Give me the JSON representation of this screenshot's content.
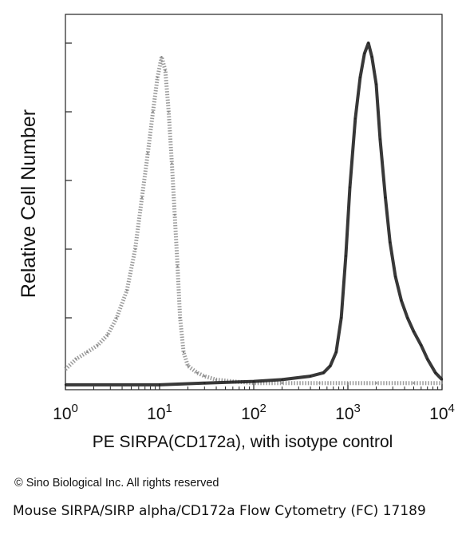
{
  "chart_data": {
    "type": "line",
    "title": "",
    "xlabel": "PE SIRPA(CD172a), with isotype control",
    "ylabel": "Relative Cell Number",
    "x_scale": "log",
    "xlim": [
      1,
      10000
    ],
    "ylim": [
      0,
      100
    ],
    "x_ticks": [
      {
        "value": 1,
        "base": "10",
        "exp": "0"
      },
      {
        "value": 10,
        "base": "10",
        "exp": "1"
      },
      {
        "value": 100,
        "base": "10",
        "exp": "2"
      },
      {
        "value": 1000,
        "base": "10",
        "exp": "3"
      },
      {
        "value": 10000,
        "base": "10",
        "exp": "4"
      }
    ],
    "grid": false,
    "legend": "none",
    "series": [
      {
        "color": "#8a8a8a",
        "style": "dotted",
        "x": [
          1,
          1.3,
          1.7,
          2.2,
          2.8,
          3.5,
          4.5,
          5.5,
          6.5,
          7.5,
          8.5,
          9.5,
          10.5,
          11.5,
          12.5,
          13.5,
          14.5,
          15.5,
          16.5,
          18,
          20,
          25,
          30,
          40,
          60,
          100,
          200,
          500,
          1000,
          2000,
          5000,
          10000
        ],
        "y": [
          5,
          8,
          10,
          12,
          15,
          20,
          28,
          40,
          55,
          68,
          80,
          90,
          96,
          92,
          80,
          65,
          50,
          35,
          20,
          10,
          6,
          4,
          3,
          2,
          1.5,
          1,
          1,
          1,
          1,
          1,
          1,
          1
        ]
      },
      {
        "color": "#222222",
        "style": "solid",
        "x": [
          1,
          10,
          30,
          100,
          200,
          400,
          550,
          650,
          750,
          850,
          950,
          1050,
          1200,
          1350,
          1500,
          1650,
          1800,
          2000,
          2200,
          2500,
          2800,
          3200,
          3700,
          4300,
          5000,
          6000,
          7000,
          8500,
          10000
        ],
        "y": [
          0.5,
          0.5,
          1,
          1.5,
          2,
          3,
          4,
          6,
          10,
          20,
          38,
          58,
          78,
          90,
          97,
          100,
          96,
          88,
          72,
          55,
          42,
          32,
          25,
          20,
          16,
          12,
          8,
          4,
          2
        ]
      }
    ]
  },
  "footer": {
    "copyright": "© Sino Biological Inc. All rights reserved",
    "caption": "Mouse SIRPA/SIRP alpha/CD172a Flow Cytometry (FC) 17189"
  }
}
